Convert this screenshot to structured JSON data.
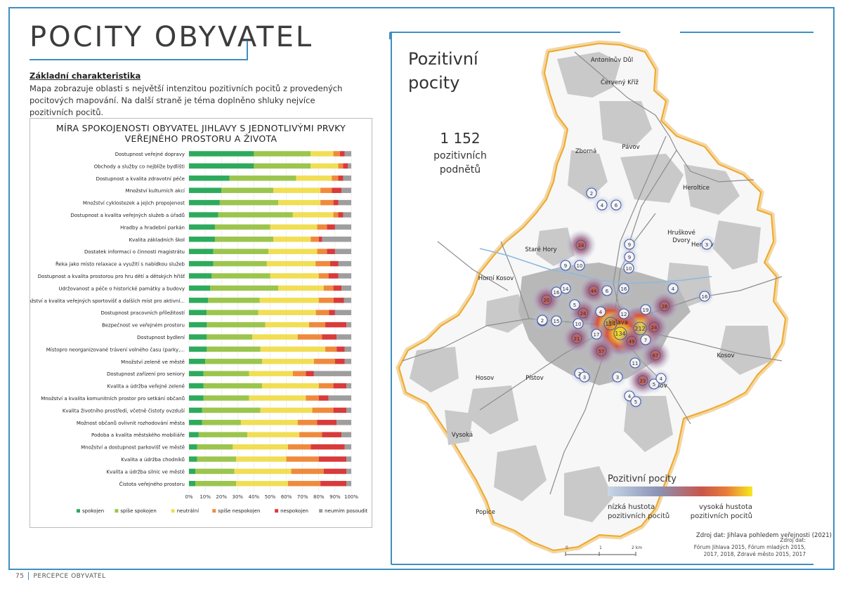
{
  "page": {
    "title": "POCITY OBYVATEL",
    "footer_page_number": "75",
    "footer_label": "PERCEPCE OBYVATEL"
  },
  "characteristics": {
    "heading": "Základní charakteristika",
    "text": "Mapa zobrazuje oblasti s největší intenzitou pozitivních pocitů z provedených pocitových mapování. Na další straně je téma doplněno shluky nejvíce pozitivních pocitů."
  },
  "chart_data": {
    "type": "bar",
    "orientation": "horizontal",
    "stacked": "percent",
    "title": "MÍRA SPOKOJENOSTI OBYVATEL JIHLAVY S JEDNOTLIVÝMI PRVKY VEŘEJNÉHO PROSTORU A ŽIVOTA",
    "title_lines": [
      "MÍRA SPOKOJENOSTI OBYVATEL JIHLAVY S JEDNOTLIVÝMI PRVKY",
      "VEŘEJNÉHO PROSTORU A ŽIVOTA"
    ],
    "xlim": [
      0,
      100
    ],
    "x_ticks": [
      "0%",
      "10%",
      "20%",
      "30%",
      "40%",
      "50%",
      "60%",
      "70%",
      "80%",
      "90%",
      "100%"
    ],
    "legend_position": "bottom",
    "source": "Zdroj dat: Jihlava pohledem veřejnosti (2021)",
    "categories": [
      "Dostupnost veřejné dopravy",
      "Obchody a služby co nejblíže bydlišti",
      "Dostupnost a kvalita zdravotní péče",
      "Množství kulturních akcí",
      "Množství cyklostezek a jejich propojenost",
      "Dostupnost a kvalita veřejných služeb a úřadů",
      "Hradby a hradební parkán",
      "Kvalita základních škol",
      "Dostatek informací o činnosti magistrátu",
      "Řeka jako místo relaxace a využití s nabídkou služeb",
      "Dostupnost a kvalita prostorou pro hru dětí a dětských hřišť",
      "Udržovanost a péče o historické památky a budovy",
      "Množství a kvalita veřejných sportovišť a dalších míst pro aktivní...",
      "Dostupnost pracovních příležitostí",
      "Bezpečnost ve veřejném prostoru",
      "Dostupnost bydlení",
      "Místopro neorganizované trávení volného času (parky,...",
      "Množství zeleně ve městě",
      "Dostupnost zařízení pro seniory",
      "Kvalita a údržba veřejné zeleně",
      "Množství a kvalita komunitních prostor pro setkání občanů",
      "Kvalita životního prostředí, včetně čistoty ovzduší",
      "Možnost občanů ovlivnit rozhodování města",
      "Podoba a kvalita městského mobiliáře",
      "Množství a dostupnost parkovišť ve městě",
      "Kvalita a údržba chodníků",
      "Kvalita a údržba silnic ve městě",
      "Čistota veřejného prostoru"
    ],
    "series": [
      {
        "name": "spokojen",
        "color": "#2eaa5c",
        "values": [
          40,
          40,
          25,
          20,
          19,
          18,
          16,
          16,
          15,
          15,
          14,
          13,
          13,
          12,
          11,
          11,
          11,
          10,
          9,
          9,
          9,
          8,
          8,
          6,
          5,
          5,
          4,
          4
        ]
      },
      {
        "name": "spíše spokojen",
        "color": "#9cc54d",
        "values": [
          35,
          35,
          41,
          32,
          36,
          46,
          34,
          36,
          34,
          33,
          36,
          42,
          35,
          35,
          36,
          28,
          33,
          35,
          28,
          36,
          28,
          36,
          24,
          30,
          22,
          24,
          24,
          25
        ]
      },
      {
        "name": "neutrální",
        "color": "#f1de55",
        "values": [
          14,
          17,
          22,
          29,
          26,
          25,
          29,
          23,
          30,
          30,
          30,
          28,
          40,
          39,
          27,
          28,
          40,
          32,
          27,
          35,
          35,
          32,
          35,
          32,
          34,
          31,
          35,
          32
        ]
      },
      {
        "name": "spíše nespokojen",
        "color": "#ef8a3d",
        "values": [
          4,
          3,
          4,
          7,
          8,
          3,
          6,
          5,
          6,
          9,
          6,
          6,
          10,
          9,
          10,
          15,
          7,
          13,
          8,
          9,
          8,
          13,
          12,
          14,
          14,
          20,
          20,
          20
        ]
      },
      {
        "name": "nespokojen",
        "color": "#d93a3a",
        "values": [
          3,
          3,
          3,
          6,
          3,
          3,
          5,
          2,
          5,
          5,
          6,
          5,
          7,
          4,
          13,
          9,
          5,
          6,
          5,
          8,
          6,
          8,
          12,
          12,
          21,
          17,
          14,
          16
        ]
      },
      {
        "name": "neumím posoudit",
        "color": "#9e9e9e",
        "values": [
          4,
          2,
          5,
          6,
          8,
          5,
          10,
          18,
          10,
          8,
          8,
          6,
          5,
          11,
          3,
          9,
          4,
          4,
          23,
          3,
          14,
          3,
          9,
          6,
          4,
          3,
          3,
          3
        ]
      }
    ]
  },
  "map": {
    "title_line1": "Pozitivní",
    "title_line2": "pocity",
    "stat_value": "1 152",
    "stat_line1": "pozitivních",
    "stat_line2": "podnětů",
    "legend_title": "Pozitivní pocity",
    "legend_low_line1": "nízká hustota",
    "legend_low_line2": "pozitivních pocitů",
    "legend_high_line1": "vysoká hustota",
    "legend_high_line2": "pozitivních pocitů",
    "legend_colors": [
      "#c8d6e6",
      "#8a93b5",
      "#c9564a",
      "#e87c3a",
      "#f7e91f"
    ],
    "scale_labels": [
      "0",
      "1",
      "2 km"
    ],
    "source_line1": "Zdroj dat:",
    "source_line2": "Fórum Jihlava 2015, Fórum mladých 2015,",
    "source_line3": "2017, 2018, Zdravé město 2015, 2017",
    "places": [
      {
        "name": "Antonínův Důl"
      },
      {
        "name": "Červený Kříž"
      },
      {
        "name": "Pávov"
      },
      {
        "name": "Zborná"
      },
      {
        "name": "Heroltice"
      },
      {
        "name": "Hruškové\nDvory"
      },
      {
        "name": "Henčov"
      },
      {
        "name": "Staré Hory"
      },
      {
        "name": "Horní Kosov"
      },
      {
        "name": "Jihlava"
      },
      {
        "name": "Kosov"
      },
      {
        "name": "Hosov"
      },
      {
        "name": "Pístov"
      },
      {
        "name": "Sasov"
      },
      {
        "name": "Vysoká"
      },
      {
        "name": "Popice"
      }
    ],
    "clusters": [
      {
        "label": "2",
        "level": "low"
      },
      {
        "label": "4",
        "level": "low"
      },
      {
        "label": "6",
        "level": "low"
      },
      {
        "label": "24",
        "level": "mid"
      },
      {
        "label": "9",
        "level": "low"
      },
      {
        "label": "3",
        "level": "low"
      },
      {
        "label": "9",
        "level": "low"
      },
      {
        "label": "10",
        "level": "low"
      },
      {
        "label": "9",
        "level": "low"
      },
      {
        "label": "10",
        "level": "low"
      },
      {
        "label": "16",
        "level": "low"
      },
      {
        "label": "14",
        "level": "low"
      },
      {
        "label": "20",
        "level": "mid"
      },
      {
        "label": "44",
        "level": "mid"
      },
      {
        "label": "6",
        "level": "low"
      },
      {
        "label": "16",
        "level": "low"
      },
      {
        "label": "4",
        "level": "low"
      },
      {
        "label": "26",
        "level": "mid"
      },
      {
        "label": "16",
        "level": "low"
      },
      {
        "label": "5",
        "level": "low"
      },
      {
        "label": "2",
        "level": "low"
      },
      {
        "label": "15",
        "level": "low"
      },
      {
        "label": "24",
        "level": "mid"
      },
      {
        "label": "4",
        "level": "low"
      },
      {
        "label": "12",
        "level": "low"
      },
      {
        "label": "19",
        "level": "low"
      },
      {
        "label": "114",
        "level": "high"
      },
      {
        "label": "212",
        "level": "high"
      },
      {
        "label": "24",
        "level": "mid"
      },
      {
        "label": "10",
        "level": "low"
      },
      {
        "label": "134",
        "level": "high"
      },
      {
        "label": "21",
        "level": "mid"
      },
      {
        "label": "17",
        "level": "low"
      },
      {
        "label": "49",
        "level": "mid"
      },
      {
        "label": "7",
        "level": "low"
      },
      {
        "label": "57",
        "level": "mid"
      },
      {
        "label": "67",
        "level": "mid"
      },
      {
        "label": "11",
        "level": "low"
      },
      {
        "label": "3",
        "level": "low"
      },
      {
        "label": "23",
        "level": "mid"
      },
      {
        "label": "5",
        "level": "low"
      },
      {
        "label": "2",
        "level": "low"
      },
      {
        "label": "4",
        "level": "low"
      },
      {
        "label": "5",
        "level": "low"
      },
      {
        "label": "4",
        "level": "low"
      },
      {
        "label": "2",
        "level": "low"
      },
      {
        "label": "3",
        "level": "low"
      }
    ]
  }
}
